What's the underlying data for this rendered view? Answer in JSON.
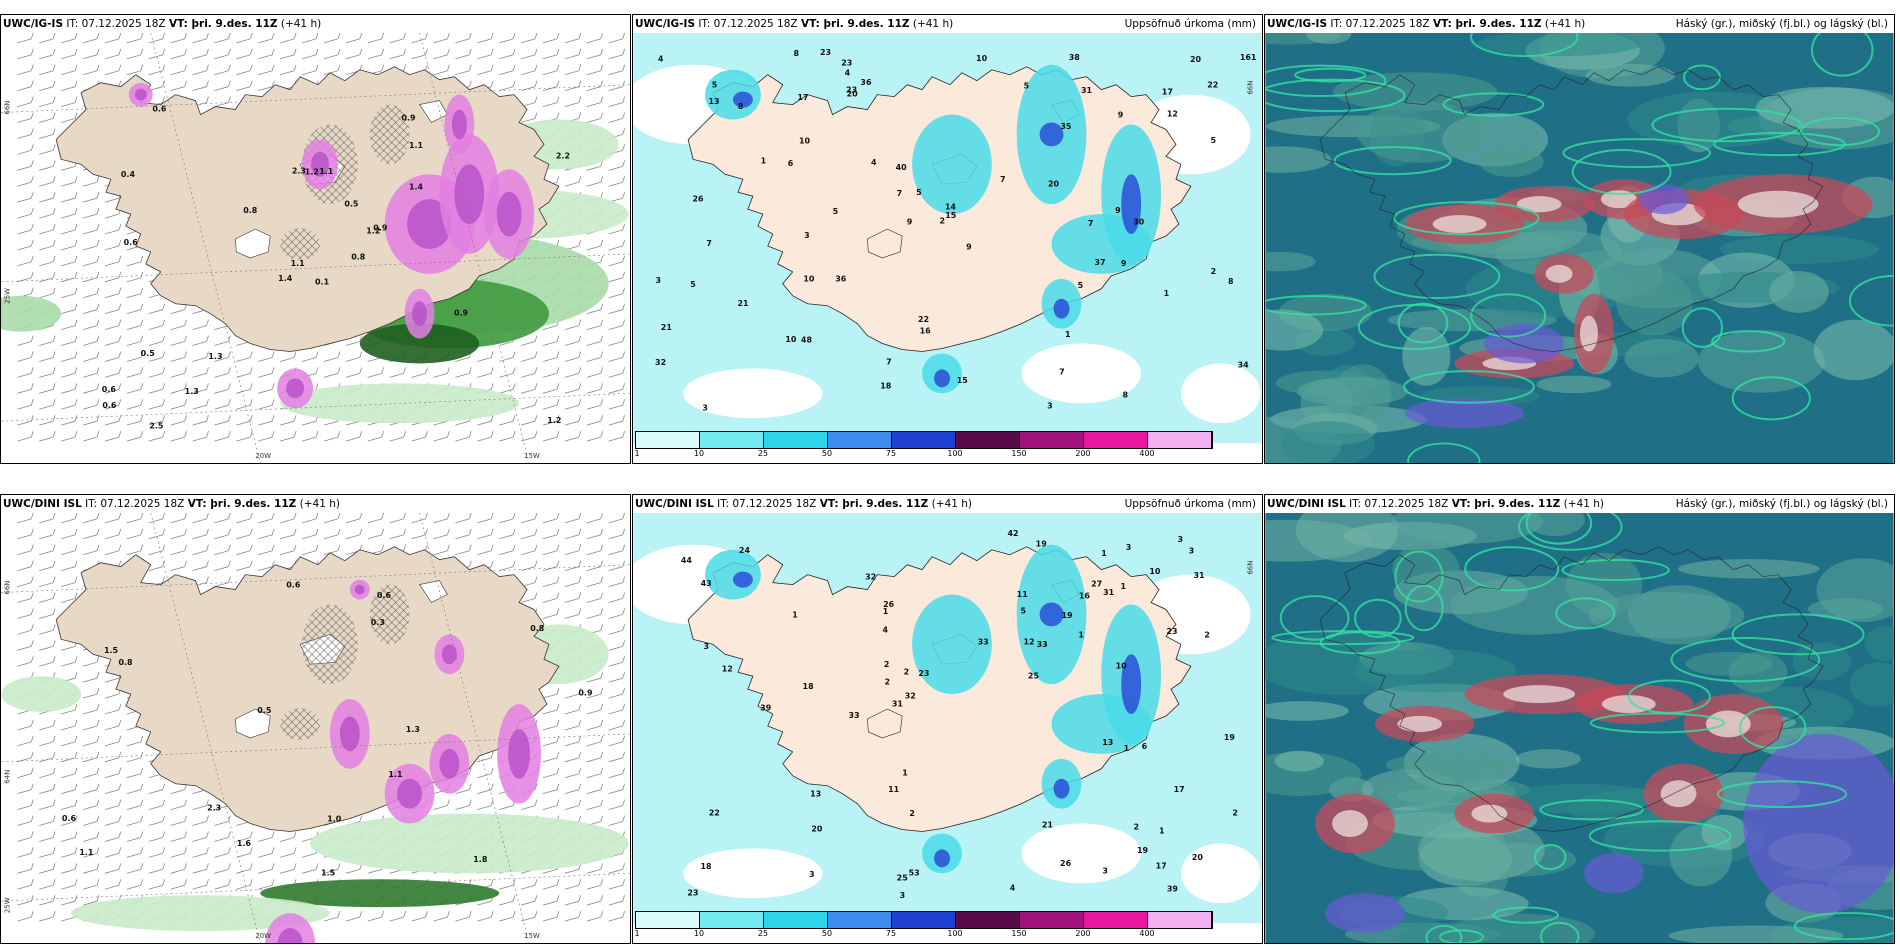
{
  "panels": [
    {
      "id": "p1",
      "header_model": "UWC/IG-IS",
      "header_rest_it": " IT: 07.12.2025 18Z ",
      "header_vt_label": "VT:",
      "header_vt": " þri. 9.des. 11Z",
      "header_lead": " (+41 h)",
      "header_right": "",
      "type": "precip-rate",
      "lat_labels": [
        "66N",
        "25W"
      ],
      "lon_labels": [
        "20W",
        "15W"
      ],
      "values": [
        "0.1",
        "0.4",
        "1.1",
        "0.6",
        "1.2",
        "1.3",
        "0.9",
        "1.1",
        "1.1",
        "0.8",
        "0.6",
        "1.2",
        "0.6",
        "2.2",
        "1.4",
        "1.4",
        "2.5",
        "2.3",
        "0.5",
        "0.5",
        "0.8",
        "0.6",
        "1.3",
        "1.2",
        "0.9",
        "0.9"
      ]
    },
    {
      "id": "p2",
      "header_model": "UWC/IG-IS",
      "header_rest_it": " IT: 07.12.2025 18Z ",
      "header_vt_label": "VT:",
      "header_vt": " þri. 9.des. 11Z",
      "header_lead": " (+41 h)",
      "header_right": "Uppsöfnuð úrkoma (mm)",
      "type": "accum",
      "lat_labels": [
        "66N"
      ],
      "lon_labels": [],
      "values": [
        "2",
        "3",
        "5",
        "5",
        "3",
        "12",
        "32",
        "34",
        "37",
        "20",
        "36",
        "5",
        "4",
        "2",
        "21",
        "38",
        "17",
        "4",
        "3",
        "9",
        "22",
        "36",
        "8",
        "20",
        "23",
        "40",
        "30",
        "15",
        "20",
        "7",
        "48",
        "10",
        "9",
        "17",
        "14",
        "10",
        "35",
        "31",
        "16",
        "26",
        "23",
        "22",
        "23",
        "15",
        "10",
        "9",
        "1",
        "3",
        "8",
        "6",
        "18",
        "7",
        "7",
        "9",
        "9",
        "7",
        "5",
        "5",
        "7",
        "8",
        "8",
        "10",
        "5",
        "5",
        "7",
        "13",
        "21",
        "1",
        "4",
        "1",
        "161"
      ],
      "legend_ticks": [
        "1",
        "10",
        "25",
        "50",
        "75",
        "100",
        "150",
        "200",
        "400"
      ],
      "legend_colors": [
        "#d9fbfb",
        "#74e8ef",
        "#30d4e8",
        "#3c8cf0",
        "#1f3fd0",
        "#5a0a46",
        "#a0137a",
        "#e8189e",
        "#f2b0f0"
      ]
    },
    {
      "id": "p3",
      "header_model": "UWC/IG-IS",
      "header_rest_it": " IT: 07.12.2025 18Z ",
      "header_vt_label": "VT:",
      "header_vt": " þri. 9.des. 11Z",
      "header_lead": " (+41 h)",
      "header_right": "Háský (gr.), miðský (fj.bl.) og lágský (bl.)",
      "type": "clouds",
      "lat_labels": [],
      "lon_labels": [],
      "values": []
    },
    {
      "id": "p4",
      "header_model": "UWC/DINI ISL",
      "header_rest_it": " IT: 07.12.2025 18Z ",
      "header_vt_label": "VT:",
      "header_vt": " þri. 9.des. 11Z",
      "header_lead": " (+41 h)",
      "header_right": "",
      "type": "precip-rate",
      "lat_labels": [
        "66N",
        "64N",
        "25W"
      ],
      "lon_labels": [
        "20W",
        "15W"
      ],
      "values": [
        "0.6",
        "1.5",
        "2.3",
        "1.3",
        "0.9",
        "1.1",
        "0.5",
        "0.3",
        "0.6",
        "1.5",
        "1.1",
        "1.0",
        "0.8",
        "0.6",
        "0.8",
        "1.8",
        "1.6"
      ]
    },
    {
      "id": "p5",
      "header_model": "UWC/DINI ISL",
      "header_rest_it": " IT: 07.12.2025 18Z ",
      "header_vt_label": "VT:",
      "header_vt": " þri. 9.des. 11Z",
      "header_lead": " (+41 h)",
      "header_right": "Uppsöfnuð úrkoma (mm)",
      "type": "accum",
      "lat_labels": [
        "66N"
      ],
      "lon_labels": [],
      "values": [
        "4",
        "4",
        "2",
        "3",
        "18",
        "5",
        "16",
        "22",
        "43",
        "2",
        "31",
        "25",
        "32",
        "32",
        "12",
        "6",
        "25",
        "26",
        "39",
        "23",
        "18",
        "27",
        "26",
        "33",
        "17",
        "19",
        "11",
        "10",
        "13",
        "10",
        "44",
        "23",
        "1",
        "1",
        "3",
        "1",
        "1",
        "2",
        "1",
        "3",
        "19",
        "24",
        "33",
        "39",
        "19",
        "31",
        "53",
        "42",
        "11",
        "2",
        "2",
        "2",
        "1",
        "1",
        "33",
        "2",
        "17",
        "23",
        "20",
        "31",
        "12",
        "13",
        "19",
        "21",
        "20",
        "3",
        "3",
        "3",
        "3",
        "1"
      ],
      "legend_ticks": [
        "1",
        "10",
        "25",
        "50",
        "75",
        "100",
        "150",
        "200",
        "400"
      ],
      "legend_colors": [
        "#d9fbfb",
        "#74e8ef",
        "#30d4e8",
        "#3c8cf0",
        "#1f3fd0",
        "#5a0a46",
        "#a0137a",
        "#e8189e",
        "#f2b0f0"
      ]
    },
    {
      "id": "p6",
      "header_model": "UWC/DINI ISL",
      "header_rest_it": " IT: 07.12.2025 18Z ",
      "header_vt_label": "VT:",
      "header_vt": " þri. 9.des. 11Z",
      "header_lead": " (+41 h)",
      "header_right": "Háský (gr.), miðský (fj.bl.) og lágský (bl.)",
      "type": "clouds",
      "lat_labels": [],
      "lon_labels": [],
      "values": []
    }
  ]
}
